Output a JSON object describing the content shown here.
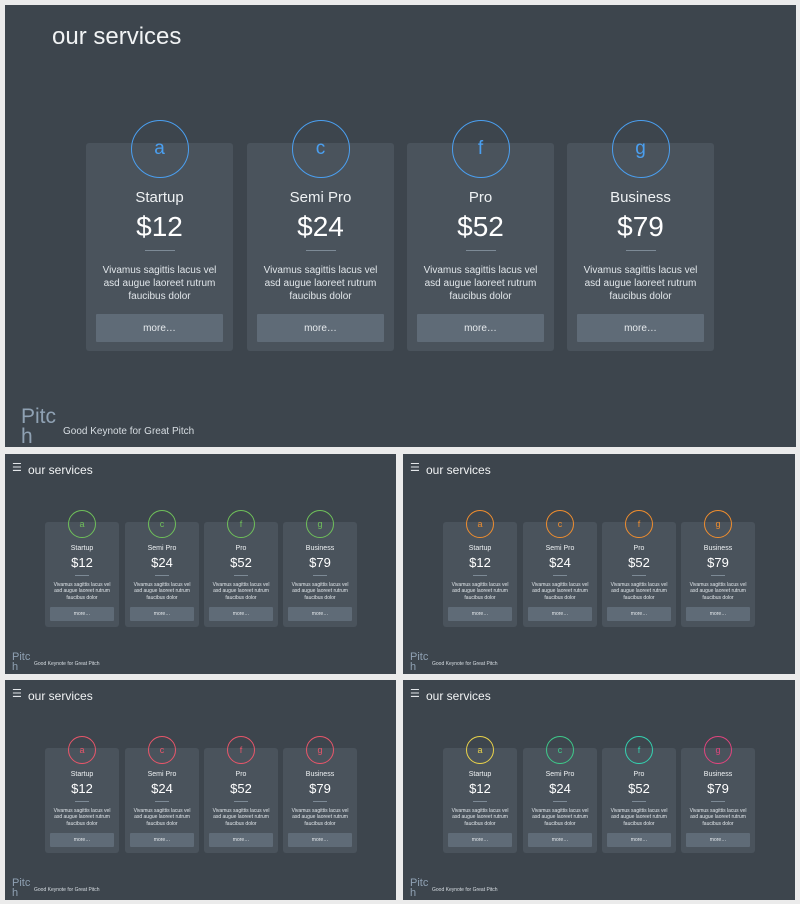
{
  "slides": [
    {
      "variant": "main",
      "title": "our services",
      "brand": "Pitch",
      "tagline": "Good Keynote for Great Pitch",
      "menu_icon": false,
      "circle_colors": [
        "#4a9ff0",
        "#4a9ff0",
        "#4a9ff0",
        "#4a9ff0"
      ]
    },
    {
      "variant": "small",
      "title": "our services",
      "brand": "Pitch",
      "tagline": "Good Keynote for Great Pitch",
      "menu_icon": true,
      "circle_colors": [
        "#6fc05a",
        "#6fc05a",
        "#6fc05a",
        "#6fc05a"
      ]
    },
    {
      "variant": "small",
      "title": "our services",
      "brand": "Pitch",
      "tagline": "Good Keynote for Great Pitch",
      "menu_icon": true,
      "circle_colors": [
        "#ef8d2e",
        "#ef8d2e",
        "#ef8d2e",
        "#ef8d2e"
      ]
    },
    {
      "variant": "small",
      "title": "our services",
      "brand": "Pitch",
      "tagline": "Good Keynote for Great Pitch",
      "menu_icon": true,
      "circle_colors": [
        "#e8566a",
        "#e8566a",
        "#e8566a",
        "#e8566a"
      ]
    },
    {
      "variant": "small",
      "title": "our services",
      "brand": "Pitch",
      "tagline": "Good Keynote for Great Pitch",
      "menu_icon": true,
      "circle_colors": [
        "#e9d24a",
        "#3ec98a",
        "#34d1b0",
        "#e0457e"
      ]
    }
  ],
  "menu_glyph": "☰",
  "cards": [
    {
      "letter": "a",
      "plan": "Startup",
      "price": "$12",
      "description": "Vivamus sagittis lacus vel asd augue laoreet rutrum faucibus dolor",
      "button": "more…"
    },
    {
      "letter": "c",
      "plan": "Semi Pro",
      "price": "$24",
      "description": "Vivamus sagittis lacus vel asd augue laoreet rutrum faucibus dolor",
      "button": "more…"
    },
    {
      "letter": "f",
      "plan": "Pro",
      "price": "$52",
      "description": "Vivamus sagittis lacus vel asd augue laoreet rutrum faucibus dolor",
      "button": "more…"
    },
    {
      "letter": "g",
      "plan": "Business",
      "price": "$79",
      "description": "Vivamus sagittis lacus vel asd augue laoreet rutrum faucibus dolor",
      "button": "more…"
    }
  ]
}
